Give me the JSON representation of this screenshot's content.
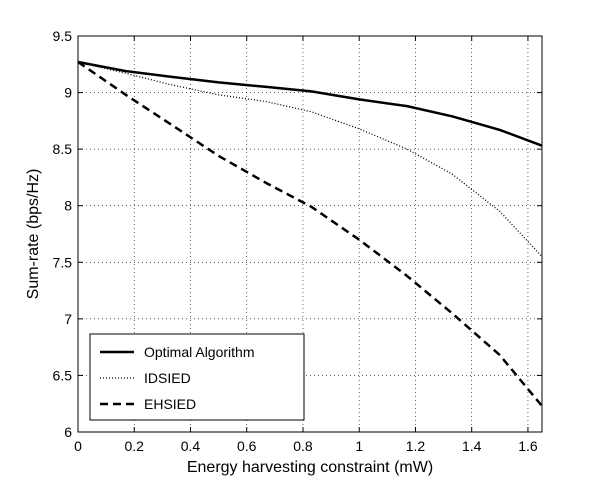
{
  "chart_data": {
    "type": "line",
    "xlabel": "Energy harvesting constraint (mW)",
    "ylabel": "Sum-rate (bps/Hz)",
    "xlim": [
      0,
      1.65
    ],
    "ylim": [
      6,
      9.5
    ],
    "xticks": [
      0,
      0.2,
      0.4,
      0.6,
      0.8,
      1,
      1.2,
      1.4,
      1.6
    ],
    "xtick_labels": [
      "0",
      "0.2",
      "0.4",
      "0.6",
      "0.8",
      "1",
      "1.2",
      "1.4",
      "1.6"
    ],
    "yticks": [
      6,
      6.5,
      7,
      7.5,
      8,
      8.5,
      9,
      9.5
    ],
    "ytick_labels": [
      "6",
      "6.5",
      "7",
      "7.5",
      "8",
      "8.5",
      "9",
      "9.5"
    ],
    "grid": true,
    "legend_position": "bottom-left",
    "series": [
      {
        "name": "Optimal Algorithm",
        "style": "solid",
        "x": [
          0,
          0.17,
          0.33,
          0.5,
          0.67,
          0.83,
          1.0,
          1.17,
          1.33,
          1.5,
          1.65
        ],
        "y": [
          9.27,
          9.19,
          9.14,
          9.09,
          9.05,
          9.01,
          8.94,
          8.88,
          8.79,
          8.67,
          8.53
        ]
      },
      {
        "name": "IDSIED",
        "style": "dotted",
        "x": [
          0,
          0.17,
          0.33,
          0.5,
          0.67,
          0.83,
          1.0,
          1.17,
          1.33,
          1.5,
          1.65
        ],
        "y": [
          9.27,
          9.17,
          9.07,
          8.98,
          8.92,
          8.83,
          8.68,
          8.5,
          8.28,
          7.95,
          7.55
        ]
      },
      {
        "name": "EHSIED",
        "style": "dashed",
        "x": [
          0,
          0.17,
          0.33,
          0.5,
          0.67,
          0.83,
          1.0,
          1.17,
          1.33,
          1.5,
          1.65
        ],
        "y": [
          9.27,
          8.98,
          8.72,
          8.44,
          8.2,
          7.99,
          7.7,
          7.38,
          7.05,
          6.68,
          6.23
        ]
      }
    ],
    "colors": {
      "line": "#000000",
      "grid": "#000000",
      "background": "#ffffff"
    }
  }
}
